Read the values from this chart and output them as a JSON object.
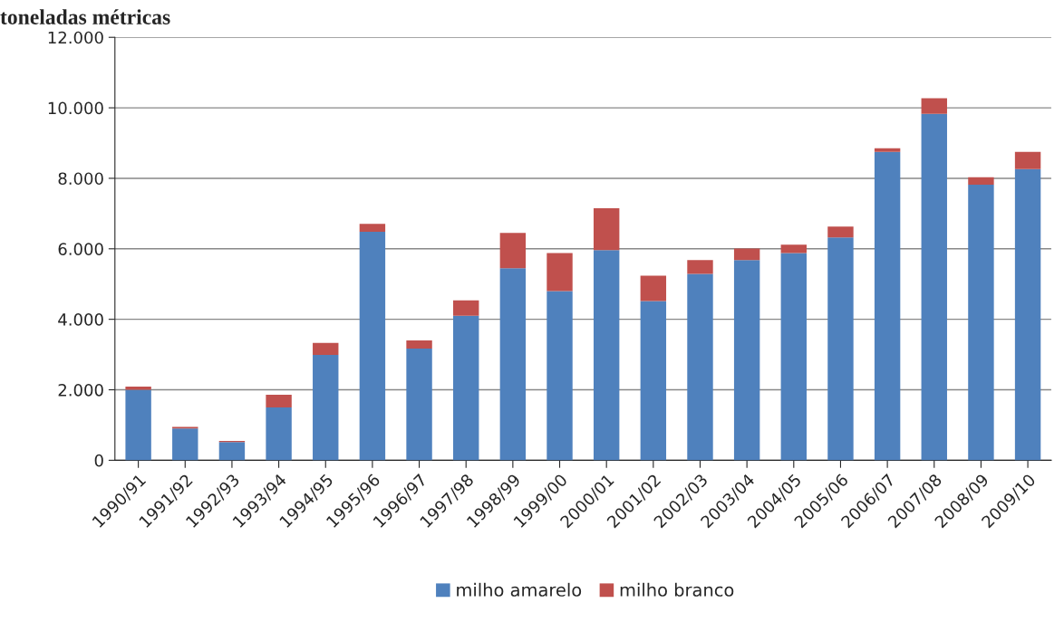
{
  "chart_data": {
    "type": "bar",
    "title": "toneladas métricas",
    "stacked": true,
    "categories": [
      "1990/91",
      "1991/92",
      "1992/93",
      "1993/94",
      "1994/95",
      "1995/96",
      "1996/97",
      "1997/98",
      "1998/99",
      "1999/00",
      "2000/01",
      "2001/02",
      "2002/03",
      "2003/04",
      "2004/05",
      "2005/06",
      "2006/07",
      "2007/08",
      "2008/09",
      "2009/10"
    ],
    "series": [
      {
        "name": "milho amarelo",
        "color": "#4f81bd",
        "values": [
          2000,
          900,
          520,
          1500,
          2990,
          6480,
          3170,
          4100,
          5450,
          4800,
          5960,
          4520,
          5290,
          5680,
          5880,
          6320,
          8750,
          9830,
          7820,
          8260
        ]
      },
      {
        "name": "milho branco",
        "color": "#c0504d",
        "values": [
          90,
          50,
          30,
          360,
          340,
          230,
          230,
          440,
          1000,
          1080,
          1190,
          720,
          390,
          330,
          240,
          310,
          100,
          440,
          210,
          490
        ]
      }
    ],
    "ylim": [
      0,
      12000
    ],
    "yticks": [
      {
        "value": 0,
        "label": "0"
      },
      {
        "value": 2000,
        "label": "2.000"
      },
      {
        "value": 4000,
        "label": "4.000"
      },
      {
        "value": 6000,
        "label": "6.000"
      },
      {
        "value": 8000,
        "label": "8.000"
      },
      {
        "value": 10000,
        "label": "10.000"
      },
      {
        "value": 12000,
        "label": "12.000"
      }
    ],
    "grid": "y",
    "legend": "bottom"
  }
}
